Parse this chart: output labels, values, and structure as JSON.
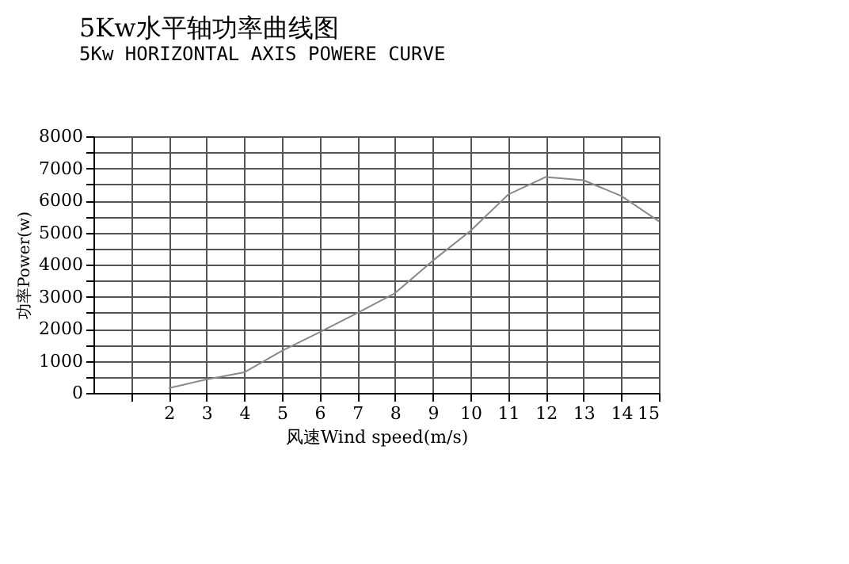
{
  "chart_data": {
    "type": "line",
    "title": "5Kw水平轴功率曲线图",
    "subtitle": "5Kw HORIZONTAL AXIS POWERE CURVE",
    "xlabel": "风速Wind speed(m/s)",
    "ylabel": "功率Power(w)",
    "x": [
      2,
      3,
      4,
      5,
      6,
      7,
      8,
      9,
      10,
      11,
      12,
      13,
      14,
      15
    ],
    "series": [
      {
        "color": "#888888",
        "values": [
          150,
          420,
          640,
          1310,
          1890,
          2490,
          3110,
          4120,
          5050,
          6180,
          6730,
          6630,
          6140,
          5350
        ]
      }
    ],
    "xlim": [
      0,
      15
    ],
    "xticks": [
      {
        "value": 1,
        "label": null
      },
      2,
      3,
      4,
      5,
      6,
      7,
      8,
      9,
      10,
      11,
      12,
      13,
      14,
      15
    ],
    "ylim": [
      0,
      8000
    ],
    "yticks": [
      0,
      {
        "value": 500,
        "label": null
      },
      1000,
      {
        "value": 1500,
        "label": null
      },
      2000,
      {
        "value": 2500,
        "label": null
      },
      3000,
      {
        "value": 3500,
        "label": null
      },
      4000,
      {
        "value": 4500,
        "label": null
      },
      5000,
      {
        "value": 5500,
        "label": null
      },
      6000,
      {
        "value": 6500,
        "label": null
      },
      7000,
      {
        "value": 7500,
        "label": null
      },
      8000
    ],
    "grid": true,
    "marker": "none",
    "line_style": "solid"
  }
}
